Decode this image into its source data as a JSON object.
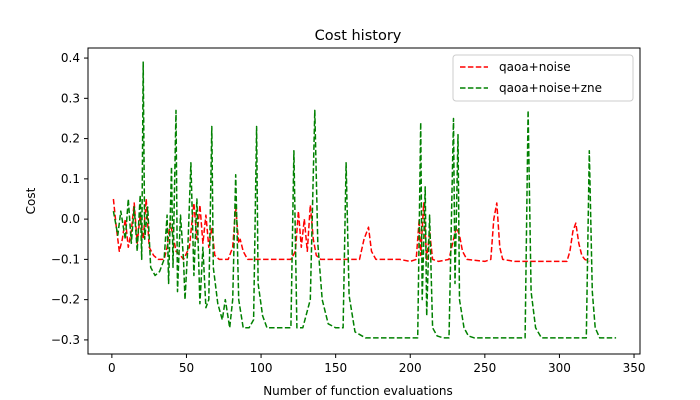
{
  "chart_data": {
    "type": "line",
    "title": "Cost history",
    "xlabel": "Number of function evaluations",
    "ylabel": "Cost",
    "xlim": [
      -16,
      354
    ],
    "ylim": [
      -0.335,
      0.425
    ],
    "xticks": [
      0,
      50,
      100,
      150,
      200,
      250,
      300,
      350
    ],
    "yticks": [
      -0.3,
      -0.2,
      -0.1,
      0.0,
      0.1,
      0.2,
      0.3,
      0.4
    ],
    "ytick_labels": [
      "−0.3",
      "−0.2",
      "−0.1",
      "0.0",
      "0.1",
      "0.2",
      "0.3",
      "0.4"
    ],
    "grid": false,
    "legend_position": "top-right",
    "series": [
      {
        "name": "qaoa+noise",
        "color": "#ff0000",
        "style": "dashed",
        "points": [
          [
            1,
            0.05
          ],
          [
            3,
            -0.02
          ],
          [
            5,
            -0.08
          ],
          [
            7,
            -0.05
          ],
          [
            9,
            0.0
          ],
          [
            11,
            -0.07
          ],
          [
            13,
            -0.03
          ],
          [
            15,
            0.04
          ],
          [
            17,
            -0.06
          ],
          [
            19,
            0.01
          ],
          [
            21,
            -0.05
          ],
          [
            23,
            0.05
          ],
          [
            25,
            -0.07
          ],
          [
            28,
            -0.09
          ],
          [
            31,
            -0.1
          ],
          [
            35,
            -0.1
          ],
          [
            37,
            -0.07
          ],
          [
            39,
            -0.01
          ],
          [
            41,
            -0.04
          ],
          [
            43,
            -0.08
          ],
          [
            46,
            -0.09
          ],
          [
            48,
            -0.1
          ],
          [
            52,
            -0.07
          ],
          [
            55,
            0.04
          ],
          [
            57,
            -0.05
          ],
          [
            59,
            0.035
          ],
          [
            61,
            -0.06
          ],
          [
            63,
            0.01
          ],
          [
            65,
            -0.07
          ],
          [
            67,
            -0.02
          ],
          [
            69,
            -0.09
          ],
          [
            72,
            -0.1
          ],
          [
            78,
            -0.1
          ],
          [
            81,
            -0.07
          ],
          [
            83,
            0.03
          ],
          [
            85,
            -0.06
          ],
          [
            86,
            -0.05
          ],
          [
            88,
            -0.08
          ],
          [
            91,
            -0.1
          ],
          [
            110,
            -0.1
          ],
          [
            120,
            -0.1
          ],
          [
            123,
            -0.08
          ],
          [
            125,
            0.02
          ],
          [
            127,
            -0.07
          ],
          [
            129,
            0.0
          ],
          [
            131,
            -0.08
          ],
          [
            133,
            0.035
          ],
          [
            135,
            -0.05
          ],
          [
            137,
            -0.09
          ],
          [
            140,
            -0.1
          ],
          [
            160,
            -0.1
          ],
          [
            166,
            -0.1
          ],
          [
            169,
            -0.05
          ],
          [
            172,
            -0.02
          ],
          [
            174,
            -0.08
          ],
          [
            177,
            -0.1
          ],
          [
            185,
            -0.1
          ],
          [
            193,
            -0.1
          ],
          [
            200,
            -0.105
          ],
          [
            204,
            -0.1
          ],
          [
            206,
            0.0
          ],
          [
            207,
            -0.09
          ],
          [
            209,
            0.04
          ],
          [
            211,
            -0.1
          ],
          [
            213,
            -0.03
          ],
          [
            215,
            -0.1
          ],
          [
            219,
            -0.105
          ],
          [
            226,
            -0.1
          ],
          [
            229,
            -0.05
          ],
          [
            231,
            -0.02
          ],
          [
            233,
            -0.04
          ],
          [
            235,
            -0.08
          ],
          [
            238,
            -0.1
          ],
          [
            250,
            -0.105
          ],
          [
            254,
            -0.1
          ],
          [
            256,
            0.0
          ],
          [
            258,
            0.04
          ],
          [
            260,
            -0.07
          ],
          [
            262,
            -0.1
          ],
          [
            270,
            -0.105
          ],
          [
            280,
            -0.105
          ],
          [
            290,
            -0.105
          ],
          [
            300,
            -0.105
          ],
          [
            305,
            -0.105
          ],
          [
            307,
            -0.08
          ],
          [
            309,
            -0.03
          ],
          [
            311,
            -0.01
          ],
          [
            313,
            -0.06
          ],
          [
            315,
            -0.09
          ],
          [
            317,
            -0.1
          ],
          [
            320,
            -0.105
          ]
        ]
      },
      {
        "name": "qaoa+noise+zne",
        "color": "#008000",
        "style": "dashed",
        "points": [
          [
            1,
            0.02
          ],
          [
            4,
            -0.04
          ],
          [
            6,
            0.02
          ],
          [
            9,
            -0.05
          ],
          [
            11,
            0.05
          ],
          [
            13,
            -0.06
          ],
          [
            15,
            0.03
          ],
          [
            17,
            -0.08
          ],
          [
            19,
            0.06
          ],
          [
            20,
            -0.1
          ],
          [
            21,
            0.39
          ],
          [
            22,
            -0.05
          ],
          [
            24,
            0.03
          ],
          [
            26,
            -0.12
          ],
          [
            29,
            -0.14
          ],
          [
            32,
            -0.13
          ],
          [
            35,
            -0.1
          ],
          [
            37,
            0.01
          ],
          [
            38,
            -0.16
          ],
          [
            40,
            0.13
          ],
          [
            41,
            -0.12
          ],
          [
            43,
            0.27
          ],
          [
            44,
            -0.18
          ],
          [
            46,
            0.01
          ],
          [
            48,
            -0.1
          ],
          [
            49,
            -0.2
          ],
          [
            51,
            -0.06
          ],
          [
            53,
            0.14
          ],
          [
            55,
            -0.14
          ],
          [
            57,
            0.05
          ],
          [
            59,
            -0.21
          ],
          [
            61,
            -0.07
          ],
          [
            63,
            -0.22
          ],
          [
            65,
            -0.2
          ],
          [
            67,
            0.23
          ],
          [
            68,
            -0.12
          ],
          [
            71,
            -0.21
          ],
          [
            74,
            -0.25
          ],
          [
            76,
            -0.2
          ],
          [
            79,
            -0.27
          ],
          [
            81,
            -0.2
          ],
          [
            83,
            0.11
          ],
          [
            85,
            -0.2
          ],
          [
            88,
            -0.27
          ],
          [
            92,
            -0.27
          ],
          [
            95,
            -0.25
          ],
          [
            97,
            0.23
          ],
          [
            98,
            -0.16
          ],
          [
            101,
            -0.24
          ],
          [
            104,
            -0.27
          ],
          [
            110,
            -0.27
          ],
          [
            115,
            -0.27
          ],
          [
            120,
            -0.27
          ],
          [
            122,
            0.17
          ],
          [
            124,
            -0.27
          ],
          [
            128,
            -0.27
          ],
          [
            133,
            -0.2
          ],
          [
            136,
            0.27
          ],
          [
            138,
            -0.06
          ],
          [
            141,
            -0.2
          ],
          [
            145,
            -0.26
          ],
          [
            150,
            -0.27
          ],
          [
            155,
            -0.27
          ],
          [
            157,
            0.14
          ],
          [
            159,
            -0.19
          ],
          [
            163,
            -0.28
          ],
          [
            170,
            -0.295
          ],
          [
            180,
            -0.295
          ],
          [
            190,
            -0.295
          ],
          [
            200,
            -0.295
          ],
          [
            205,
            -0.295
          ],
          [
            207,
            0.24
          ],
          [
            208,
            -0.2
          ],
          [
            210,
            0.08
          ],
          [
            211,
            -0.24
          ],
          [
            213,
            0.01
          ],
          [
            215,
            -0.27
          ],
          [
            218,
            -0.29
          ],
          [
            222,
            -0.295
          ],
          [
            226,
            -0.295
          ],
          [
            229,
            0.25
          ],
          [
            230,
            -0.16
          ],
          [
            232,
            0.21
          ],
          [
            233,
            -0.2
          ],
          [
            236,
            -0.27
          ],
          [
            239,
            -0.29
          ],
          [
            243,
            -0.295
          ],
          [
            250,
            -0.295
          ],
          [
            260,
            -0.295
          ],
          [
            270,
            -0.295
          ],
          [
            277,
            -0.295
          ],
          [
            279,
            0.27
          ],
          [
            281,
            -0.18
          ],
          [
            284,
            -0.27
          ],
          [
            288,
            -0.295
          ],
          [
            300,
            -0.295
          ],
          [
            310,
            -0.295
          ],
          [
            318,
            -0.295
          ],
          [
            320,
            0.17
          ],
          [
            322,
            -0.18
          ],
          [
            324,
            -0.27
          ],
          [
            327,
            -0.295
          ],
          [
            333,
            -0.295
          ],
          [
            338,
            -0.295
          ]
        ]
      }
    ]
  }
}
